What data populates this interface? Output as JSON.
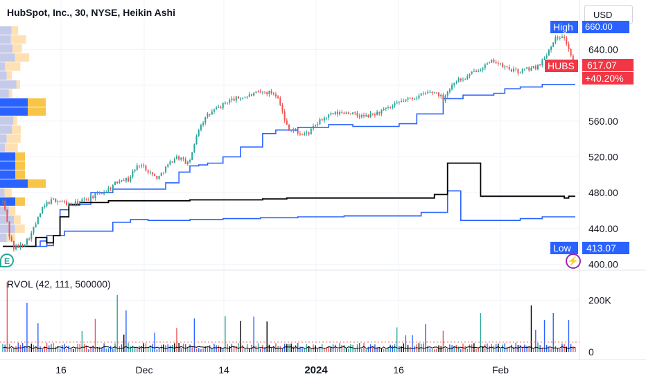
{
  "header": {
    "title": "HubSpot, Inc., 30, NYSE, Heikin Ashi",
    "currency": "USD"
  },
  "indicator": {
    "title": "RVOL (42, 111, 500000)"
  },
  "tags": {
    "high_label": "High",
    "high_value": "660.00",
    "symbol": "HUBS",
    "last_price": "617.07",
    "change_pct": "+40.20%",
    "low_label": "Low",
    "low_value": "413.07"
  },
  "markers": {
    "earnings": "E",
    "event": "⚡"
  },
  "colors": {
    "up": "#26a69a",
    "down": "#ef5350",
    "band": "#2962ff",
    "mid": "#000000",
    "vp_up": "#c5cae9",
    "vp_down": "#ffe0b2",
    "vp_poc_blue": "#2962ff",
    "vp_poc_yellow": "#f7c548"
  },
  "chart_data": [
    {
      "type": "line",
      "subtype": "heikin-ashi candlestick with bands",
      "x_ticks": [
        "16",
        "Dec",
        "14",
        "2024",
        "16",
        "Feb"
      ],
      "y_ticks": [
        400,
        440,
        480,
        520,
        560,
        600,
        640
      ],
      "y_tick_labels": [
        "400.00",
        "440.00",
        "480.00",
        "520.00",
        "560.00",
        "",
        "640.00"
      ],
      "ylim": [
        395,
        672
      ],
      "price_path": [
        [
          0,
          470
        ],
        [
          3,
          455
        ],
        [
          6,
          432
        ],
        [
          10,
          418
        ],
        [
          15,
          420
        ],
        [
          20,
          424
        ],
        [
          25,
          432
        ],
        [
          30,
          445
        ],
        [
          35,
          460
        ],
        [
          40,
          468
        ],
        [
          46,
          472
        ],
        [
          54,
          470
        ],
        [
          62,
          466
        ],
        [
          70,
          470
        ],
        [
          78,
          474
        ],
        [
          86,
          478
        ],
        [
          94,
          482
        ],
        [
          102,
          490
        ],
        [
          108,
          496
        ],
        [
          114,
          494
        ],
        [
          118,
          503
        ],
        [
          124,
          512
        ],
        [
          130,
          507
        ],
        [
          136,
          500
        ],
        [
          141,
          496
        ],
        [
          146,
          505
        ],
        [
          151,
          512
        ],
        [
          157,
          520
        ],
        [
          162,
          518
        ],
        [
          168,
          512
        ],
        [
          172,
          523
        ],
        [
          176,
          545
        ],
        [
          180,
          557
        ],
        [
          186,
          566
        ],
        [
          192,
          572
        ],
        [
          198,
          576
        ],
        [
          205,
          583
        ],
        [
          212,
          585
        ],
        [
          220,
          587
        ],
        [
          228,
          590
        ],
        [
          236,
          592
        ],
        [
          244,
          592
        ],
        [
          250,
          588
        ],
        [
          253,
          575
        ],
        [
          256,
          560
        ],
        [
          260,
          552
        ],
        [
          266,
          548
        ],
        [
          272,
          545
        ],
        [
          278,
          547
        ],
        [
          284,
          555
        ],
        [
          290,
          562
        ],
        [
          298,
          567
        ],
        [
          306,
          569
        ],
        [
          314,
          570
        ],
        [
          322,
          566
        ],
        [
          330,
          565
        ],
        [
          338,
          568
        ],
        [
          346,
          572
        ],
        [
          354,
          576
        ],
        [
          362,
          582
        ],
        [
          370,
          585
        ],
        [
          378,
          588
        ],
        [
          386,
          592
        ],
        [
          394,
          592
        ],
        [
          400,
          585
        ],
        [
          403,
          592
        ],
        [
          406,
          596
        ],
        [
          410,
          604
        ],
        [
          414,
          606
        ],
        [
          418,
          606
        ],
        [
          424,
          611
        ],
        [
          430,
          617
        ],
        [
          436,
          621
        ],
        [
          442,
          624
        ],
        [
          446,
          628
        ],
        [
          452,
          622
        ],
        [
          460,
          618
        ],
        [
          468,
          615
        ],
        [
          476,
          618
        ],
        [
          484,
          620
        ],
        [
          492,
          630
        ],
        [
          500,
          650
        ],
        [
          508,
          656
        ],
        [
          513,
          645
        ],
        [
          517,
          628
        ],
        [
          521,
          617
        ]
      ],
      "upper_band": [
        [
          0,
          420
        ],
        [
          40,
          420
        ],
        [
          40,
          432
        ],
        [
          52,
          432
        ],
        [
          52,
          461
        ],
        [
          60,
          461
        ],
        [
          60,
          466
        ],
        [
          70,
          466
        ],
        [
          70,
          467
        ],
        [
          80,
          467
        ],
        [
          80,
          480
        ],
        [
          100,
          480
        ],
        [
          100,
          484
        ],
        [
          148,
          484
        ],
        [
          148,
          491
        ],
        [
          160,
          491
        ],
        [
          160,
          503
        ],
        [
          170,
          503
        ],
        [
          170,
          510
        ],
        [
          178,
          510
        ],
        [
          178,
          511
        ],
        [
          186,
          511
        ],
        [
          186,
          513
        ],
        [
          200,
          513
        ],
        [
          200,
          520
        ],
        [
          216,
          520
        ],
        [
          216,
          531
        ],
        [
          236,
          531
        ],
        [
          236,
          546
        ],
        [
          248,
          546
        ],
        [
          248,
          550
        ],
        [
          268,
          550
        ],
        [
          268,
          553
        ],
        [
          296,
          553
        ],
        [
          296,
          556
        ],
        [
          318,
          556
        ],
        [
          318,
          554
        ],
        [
          360,
          554
        ],
        [
          360,
          557
        ],
        [
          376,
          557
        ],
        [
          376,
          568
        ],
        [
          400,
          568
        ],
        [
          400,
          585
        ],
        [
          418,
          585
        ],
        [
          418,
          589
        ],
        [
          446,
          589
        ],
        [
          446,
          591
        ],
        [
          456,
          591
        ],
        [
          456,
          596
        ],
        [
          470,
          596
        ],
        [
          470,
          598
        ],
        [
          490,
          598
        ],
        [
          490,
          601
        ],
        [
          520,
          601
        ]
      ],
      "mid_line": [
        [
          0,
          420
        ],
        [
          30,
          420
        ],
        [
          30,
          430
        ],
        [
          40,
          430
        ],
        [
          40,
          424
        ],
        [
          46,
          424
        ],
        [
          46,
          432
        ],
        [
          52,
          432
        ],
        [
          52,
          453
        ],
        [
          60,
          453
        ],
        [
          60,
          467
        ],
        [
          70,
          467
        ],
        [
          70,
          469
        ],
        [
          96,
          469
        ],
        [
          96,
          471
        ],
        [
          170,
          471
        ],
        [
          170,
          472
        ],
        [
          236,
          472
        ],
        [
          236,
          473
        ],
        [
          258,
          473
        ],
        [
          258,
          474
        ],
        [
          392,
          474
        ],
        [
          392,
          478
        ],
        [
          404,
          478
        ],
        [
          404,
          513
        ],
        [
          434,
          513
        ],
        [
          434,
          476
        ],
        [
          510,
          476
        ],
        [
          510,
          474
        ],
        [
          514,
          474
        ],
        [
          514,
          476
        ],
        [
          520,
          476
        ]
      ],
      "lower_band": [
        [
          0,
          420
        ],
        [
          34,
          420
        ],
        [
          34,
          426
        ],
        [
          40,
          426
        ],
        [
          40,
          421
        ],
        [
          46,
          421
        ],
        [
          46,
          432
        ],
        [
          56,
          432
        ],
        [
          56,
          437
        ],
        [
          100,
          437
        ],
        [
          100,
          447
        ],
        [
          116,
          447
        ],
        [
          116,
          450
        ],
        [
          132,
          450
        ],
        [
          132,
          449
        ],
        [
          170,
          449
        ],
        [
          170,
          450
        ],
        [
          200,
          450
        ],
        [
          200,
          451
        ],
        [
          234,
          451
        ],
        [
          234,
          452
        ],
        [
          268,
          452
        ],
        [
          268,
          453
        ],
        [
          310,
          453
        ],
        [
          310,
          454
        ],
        [
          380,
          454
        ],
        [
          380,
          458
        ],
        [
          404,
          458
        ],
        [
          404,
          482
        ],
        [
          416,
          482
        ],
        [
          416,
          449
        ],
        [
          470,
          449
        ],
        [
          470,
          451
        ],
        [
          490,
          451
        ],
        [
          490,
          453
        ],
        [
          520,
          453
        ]
      ]
    },
    {
      "type": "bar",
      "subtype": "relative volume histogram",
      "y_ticks": [
        0,
        200000
      ],
      "y_tick_labels": [
        "0",
        "200K"
      ],
      "ylim": [
        0,
        300000
      ]
    }
  ]
}
